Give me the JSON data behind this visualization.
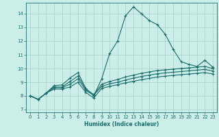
{
  "xlabel": "Humidex (Indice chaleur)",
  "bg_color": "#cceee8",
  "grid_color": "#aad4ce",
  "line_color": "#1a6b6b",
  "xlim": [
    -0.5,
    23.5
  ],
  "ylim": [
    6.8,
    14.8
  ],
  "xticks": [
    0,
    1,
    2,
    3,
    4,
    5,
    6,
    7,
    8,
    9,
    10,
    11,
    12,
    13,
    14,
    15,
    16,
    17,
    18,
    19,
    20,
    21,
    22,
    23
  ],
  "yticks": [
    7,
    8,
    9,
    10,
    11,
    12,
    13,
    14
  ],
  "series": [
    [
      8.0,
      7.75,
      8.2,
      8.75,
      8.8,
      9.3,
      9.7,
      8.55,
      8.0,
      9.25,
      11.1,
      12.0,
      13.85,
      14.5,
      14.0,
      13.5,
      13.2,
      12.5,
      11.4,
      10.5,
      10.3,
      10.15,
      10.6,
      10.1
    ],
    [
      8.0,
      7.75,
      8.2,
      8.65,
      8.65,
      9.05,
      9.45,
      8.5,
      8.1,
      8.85,
      9.05,
      9.2,
      9.38,
      9.52,
      9.65,
      9.75,
      9.85,
      9.9,
      9.95,
      10.0,
      10.05,
      10.1,
      10.15,
      10.0
    ],
    [
      8.0,
      7.75,
      8.2,
      8.6,
      8.6,
      8.85,
      9.25,
      8.4,
      8.05,
      8.7,
      8.88,
      9.0,
      9.16,
      9.3,
      9.42,
      9.52,
      9.62,
      9.68,
      9.73,
      9.78,
      9.83,
      9.88,
      9.93,
      9.82
    ],
    [
      8.0,
      7.75,
      8.2,
      8.5,
      8.5,
      8.65,
      9.0,
      8.25,
      7.85,
      8.55,
      8.7,
      8.82,
      8.95,
      9.07,
      9.18,
      9.28,
      9.38,
      9.44,
      9.5,
      9.55,
      9.6,
      9.65,
      9.7,
      9.6
    ]
  ]
}
